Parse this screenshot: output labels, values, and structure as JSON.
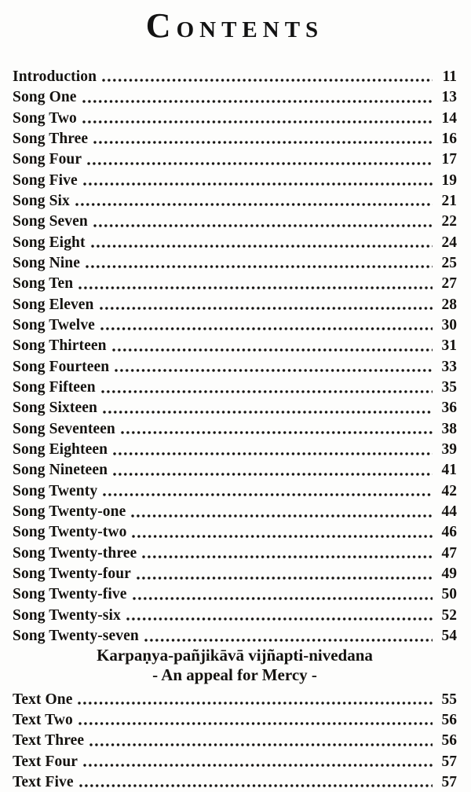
{
  "toc": {
    "title": "CONTENTS",
    "colors": {
      "ink": "#151310",
      "paper": "#fdfdfc"
    },
    "entries": [
      {
        "label": "Introduction",
        "page": "11"
      },
      {
        "label": "Song One",
        "page": "13"
      },
      {
        "label": "Song Two",
        "page": "14"
      },
      {
        "label": "Song Three",
        "page": "16"
      },
      {
        "label": "Song Four",
        "page": "17"
      },
      {
        "label": "Song Five",
        "page": "19"
      },
      {
        "label": "Song Six",
        "page": "21"
      },
      {
        "label": "Song Seven",
        "page": "22"
      },
      {
        "label": "Song Eight",
        "page": "24"
      },
      {
        "label": "Song Nine",
        "page": "25"
      },
      {
        "label": "Song Ten",
        "page": "27"
      },
      {
        "label": "Song Eleven",
        "page": "28"
      },
      {
        "label": "Song Twelve",
        "page": "30"
      },
      {
        "label": "Song Thirteen",
        "page": "31"
      },
      {
        "label": "Song Fourteen",
        "page": "33"
      },
      {
        "label": "Song Fifteen",
        "page": "35"
      },
      {
        "label": "Song Sixteen",
        "page": "36"
      },
      {
        "label": "Song Seventeen",
        "page": "38"
      },
      {
        "label": "Song Eighteen",
        "page": "39"
      },
      {
        "label": "Song Nineteen",
        "page": "41"
      },
      {
        "label": "Song Twenty",
        "page": "42"
      },
      {
        "label": "Song Twenty-one",
        "page": "44"
      },
      {
        "label": "Song Twenty-two",
        "page": "46"
      },
      {
        "label": "Song Twenty-three",
        "page": "47"
      },
      {
        "label": "Song Twenty-four",
        "page": "49"
      },
      {
        "label": "Song Twenty-five",
        "page": "50"
      },
      {
        "label": "Song Twenty-six",
        "page": "52"
      },
      {
        "label": "Song Twenty-seven",
        "page": "54"
      }
    ],
    "section_heading": {
      "line1": "Karpaṇya-pañjikāvā vijñapti-nivedana",
      "line2": "- An appeal for Mercy -"
    },
    "text_entries": [
      {
        "label": "Text One",
        "page": "55"
      },
      {
        "label": "Text Two",
        "page": "56"
      },
      {
        "label": "Text Three",
        "page": "56"
      },
      {
        "label": "Text Four",
        "page": "57"
      },
      {
        "label": "Text Five",
        "page": "57"
      }
    ]
  }
}
